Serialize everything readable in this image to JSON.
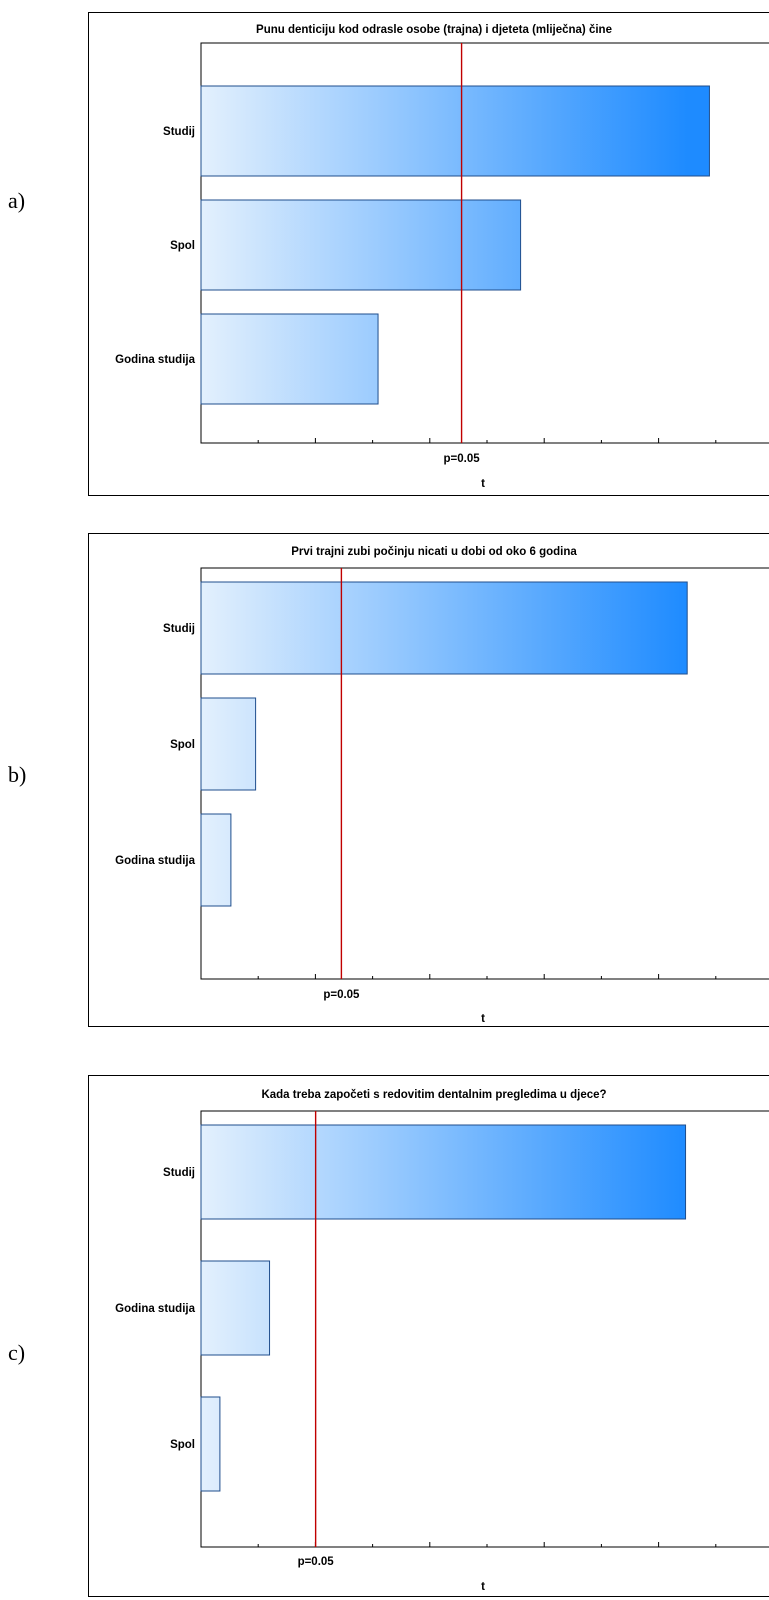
{
  "panels": [
    {
      "letter": "a)"
    },
    {
      "letter": "b)"
    },
    {
      "letter": "c)"
    }
  ],
  "colors": {
    "bar_start": "#e3f0fd",
    "bar_end": "#1e8bff",
    "bar_stroke": "#1f4e8c",
    "ref_line": "#c00000",
    "axis": "#000000"
  },
  "chart_data": [
    {
      "type": "bar",
      "orientation": "horizontal",
      "title": "Punu denticiju kod odrasle osobe (trajna) i djeteta (mliječna) čine",
      "xlabel": "t",
      "ylabel": "",
      "categories": [
        "Studij",
        "Spol",
        "Godina studija"
      ],
      "values": [
        4.8,
        2.72,
        1.15
      ],
      "xlim": [
        -0.8,
        5.5
      ],
      "reference_line": {
        "label": "p=0.05",
        "value": 2.07
      },
      "grid": false
    },
    {
      "type": "bar",
      "orientation": "horizontal",
      "title": "Prvi trajni zubi počinju nicati u dobi od oko 6 godina",
      "xlabel": "t",
      "ylabel": "",
      "categories": [
        "Studij",
        "Spol",
        "Godina studija"
      ],
      "values": [
        18.2,
        1.6,
        0.65
      ],
      "xlim": [
        -0.5,
        21.5
      ],
      "reference_line": {
        "label": "p=0.05",
        "value": 4.9
      },
      "grid": false
    },
    {
      "type": "bar",
      "orientation": "horizontal",
      "title": "Kada treba započeti s redovitim dentalnim pregledima u djece?",
      "xlabel": "t",
      "ylabel": "",
      "categories": [
        "Studij",
        "Godina studija",
        "Spol"
      ],
      "values": [
        20.0,
        2.4,
        0.3
      ],
      "xlim": [
        -0.5,
        23.7
      ],
      "reference_line": {
        "label": "p=0.05",
        "value": 4.35
      },
      "grid": false
    }
  ]
}
